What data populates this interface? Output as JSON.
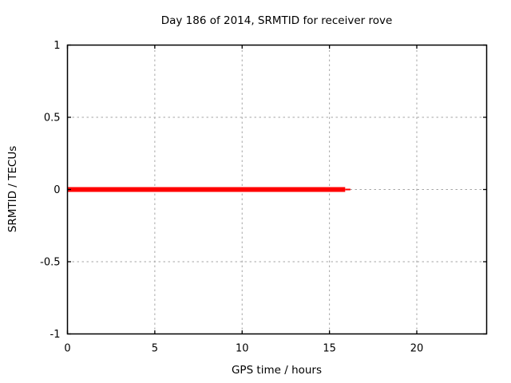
{
  "chart_data": {
    "type": "line",
    "title": "Day 186 of 2014, SRMTID for receiver rove",
    "xlabel": "GPS time / hours",
    "ylabel": "SRMTID / TECUs",
    "xlim": [
      0,
      24
    ],
    "ylim": [
      -1,
      1
    ],
    "xticks": [
      0,
      5,
      10,
      15,
      20
    ],
    "yticks": [
      -1,
      -0.5,
      0,
      0.5,
      1
    ],
    "grid": true,
    "legend": "none",
    "series": [
      {
        "name": "srmtid-main",
        "color": "#ff0000",
        "linewidth": 6,
        "x": [
          0,
          15.9
        ],
        "y": [
          0,
          0
        ]
      },
      {
        "name": "srmtid-tail",
        "color": "#ff0000",
        "linewidth": 2,
        "x": [
          15.9,
          16.2
        ],
        "y": [
          0,
          0
        ]
      }
    ],
    "colors": {
      "background": "#ffffff",
      "border": "#000000",
      "grid": "#a6a6a6",
      "series": "#ff0000",
      "text": "#000000"
    }
  }
}
